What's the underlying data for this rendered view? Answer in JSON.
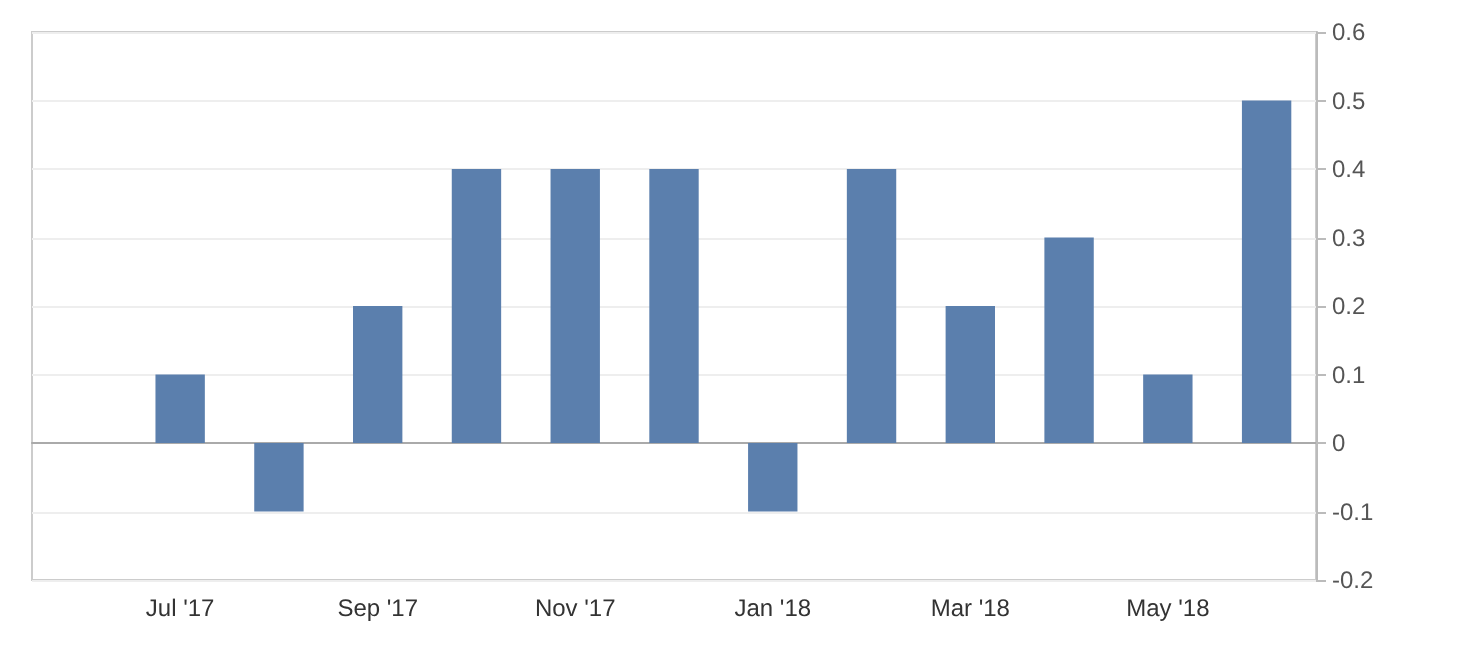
{
  "chart_data": {
    "type": "bar",
    "categories": [
      null,
      "Jul '17",
      null,
      "Sep '17",
      null,
      "Nov '17",
      null,
      "Jan '18",
      null,
      "Mar '18",
      null,
      "May '18",
      null
    ],
    "values": [
      null,
      0.1,
      -0.1,
      0.2,
      0.4,
      0.4,
      0.4,
      -0.1,
      0.4,
      0.2,
      0.3,
      0.1,
      0.5
    ],
    "color": "#5b7fad",
    "ylim": [
      -0.2,
      0.6
    ],
    "yticks": [
      -0.2,
      -0.1,
      0,
      0.1,
      0.2,
      0.3,
      0.4,
      0.5,
      0.6
    ],
    "grid": "y"
  }
}
